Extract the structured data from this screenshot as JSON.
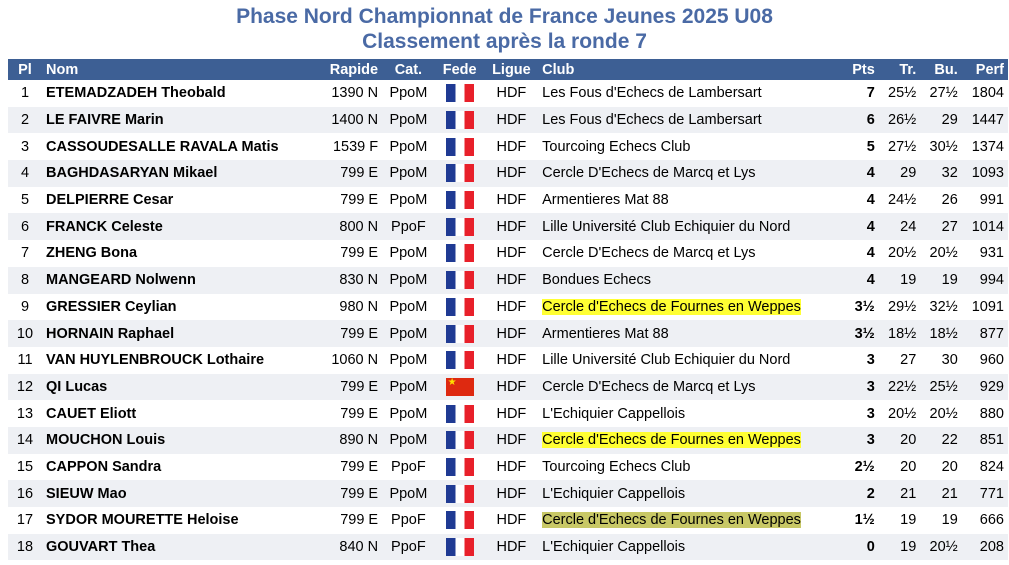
{
  "title": "Phase Nord Championnat de France Jeunes 2025 U08",
  "subtitle": "Classement après la ronde 7",
  "columns": {
    "pl": "Pl",
    "nom": "Nom",
    "rapide": "Rapide",
    "cat": "Cat.",
    "fede": "Fede",
    "ligue": "Ligue",
    "club": "Club",
    "pts": "Pts",
    "tr": "Tr.",
    "bu": "Bu.",
    "perf": "Perf"
  },
  "colors": {
    "title": "#4a6aa5",
    "header_bg": "#3d5f94",
    "highlight_yellow": "#ffff33",
    "highlight_olive": "#c8c866"
  },
  "rows": [
    {
      "pl": "1",
      "nom": "ETEMADZADEH Theobald",
      "rapide": "1390 N",
      "cat": "PpoM",
      "fede": "flag-france",
      "ligue": "HDF",
      "club": "Les Fous d'Echecs de Lambersart",
      "club_highlight": "",
      "pts": "7",
      "tr": "25½",
      "bu": "27½",
      "perf": "1804"
    },
    {
      "pl": "2",
      "nom": "LE FAIVRE Marin",
      "rapide": "1400 N",
      "cat": "PpoM",
      "fede": "flag-france",
      "ligue": "HDF",
      "club": "Les Fous d'Echecs de Lambersart",
      "club_highlight": "",
      "pts": "6",
      "tr": "26½",
      "bu": "29",
      "perf": "1447"
    },
    {
      "pl": "3",
      "nom": "CASSOUDESALLE RAVALA Matis",
      "rapide": "1539 F",
      "cat": "PpoM",
      "fede": "flag-france",
      "ligue": "HDF",
      "club": "Tourcoing Echecs Club",
      "club_highlight": "",
      "pts": "5",
      "tr": "27½",
      "bu": "30½",
      "perf": "1374"
    },
    {
      "pl": "4",
      "nom": "BAGHDASARYAN Mikael",
      "rapide": "799 E",
      "cat": "PpoM",
      "fede": "flag-france",
      "ligue": "HDF",
      "club": "Cercle D'Echecs de Marcq et Lys",
      "club_highlight": "",
      "pts": "4",
      "tr": "29",
      "bu": "32",
      "perf": "1093"
    },
    {
      "pl": "5",
      "nom": "DELPIERRE Cesar",
      "rapide": "799 E",
      "cat": "PpoM",
      "fede": "flag-france",
      "ligue": "HDF",
      "club": "Armentieres Mat 88",
      "club_highlight": "",
      "pts": "4",
      "tr": "24½",
      "bu": "26",
      "perf": "991"
    },
    {
      "pl": "6",
      "nom": "FRANCK Celeste",
      "rapide": "800 N",
      "cat": "PpoF",
      "fede": "flag-france",
      "ligue": "HDF",
      "club": "Lille Université Club Echiquier du Nord",
      "club_highlight": "",
      "pts": "4",
      "tr": "24",
      "bu": "27",
      "perf": "1014"
    },
    {
      "pl": "7",
      "nom": "ZHENG Bona",
      "rapide": "799 E",
      "cat": "PpoM",
      "fede": "flag-france",
      "ligue": "HDF",
      "club": "Cercle D'Echecs de Marcq et Lys",
      "club_highlight": "",
      "pts": "4",
      "tr": "20½",
      "bu": "20½",
      "perf": "931"
    },
    {
      "pl": "8",
      "nom": "MANGEARD Nolwenn",
      "rapide": "830 N",
      "cat": "PpoM",
      "fede": "flag-france",
      "ligue": "HDF",
      "club": "Bondues Echecs",
      "club_highlight": "",
      "pts": "4",
      "tr": "19",
      "bu": "19",
      "perf": "994"
    },
    {
      "pl": "9",
      "nom": "GRESSIER Ceylian",
      "rapide": "980 N",
      "cat": "PpoM",
      "fede": "flag-france",
      "ligue": "HDF",
      "club": "Cercle d'Echecs de Fournes en Weppes",
      "club_highlight": "yellow",
      "pts": "3½",
      "tr": "29½",
      "bu": "32½",
      "perf": "1091"
    },
    {
      "pl": "10",
      "nom": "HORNAIN Raphael",
      "rapide": "799 E",
      "cat": "PpoM",
      "fede": "flag-france",
      "ligue": "HDF",
      "club": "Armentieres Mat 88",
      "club_highlight": "",
      "pts": "3½",
      "tr": "18½",
      "bu": "18½",
      "perf": "877"
    },
    {
      "pl": "11",
      "nom": "VAN HUYLENBROUCK Lothaire",
      "rapide": "1060 N",
      "cat": "PpoM",
      "fede": "flag-france",
      "ligue": "HDF",
      "club": "Lille Université Club Echiquier du Nord",
      "club_highlight": "",
      "pts": "3",
      "tr": "27",
      "bu": "30",
      "perf": "960"
    },
    {
      "pl": "12",
      "nom": "QI Lucas",
      "rapide": "799 E",
      "cat": "PpoM",
      "fede": "flag-china",
      "ligue": "HDF",
      "club": "Cercle D'Echecs de Marcq et Lys",
      "club_highlight": "",
      "pts": "3",
      "tr": "22½",
      "bu": "25½",
      "perf": "929"
    },
    {
      "pl": "13",
      "nom": "CAUET Eliott",
      "rapide": "799 E",
      "cat": "PpoM",
      "fede": "flag-france",
      "ligue": "HDF",
      "club": "L'Echiquier Cappellois",
      "club_highlight": "",
      "pts": "3",
      "tr": "20½",
      "bu": "20½",
      "perf": "880"
    },
    {
      "pl": "14",
      "nom": "MOUCHON Louis",
      "rapide": "890 N",
      "cat": "PpoM",
      "fede": "flag-france",
      "ligue": "HDF",
      "club": "Cercle d'Echecs de Fournes en Weppes",
      "club_highlight": "yellow",
      "pts": "3",
      "tr": "20",
      "bu": "22",
      "perf": "851"
    },
    {
      "pl": "15",
      "nom": "CAPPON Sandra",
      "rapide": "799 E",
      "cat": "PpoF",
      "fede": "flag-france",
      "ligue": "HDF",
      "club": "Tourcoing Echecs Club",
      "club_highlight": "",
      "pts": "2½",
      "tr": "20",
      "bu": "20",
      "perf": "824"
    },
    {
      "pl": "16",
      "nom": "SIEUW Mao",
      "rapide": "799 E",
      "cat": "PpoM",
      "fede": "flag-france",
      "ligue": "HDF",
      "club": "L'Echiquier Cappellois",
      "club_highlight": "",
      "pts": "2",
      "tr": "21",
      "bu": "21",
      "perf": "771"
    },
    {
      "pl": "17",
      "nom": "SYDOR MOURETTE Heloise",
      "rapide": "799 E",
      "cat": "PpoF",
      "fede": "flag-france",
      "ligue": "HDF",
      "club": "Cercle d'Echecs de Fournes en Weppes",
      "club_highlight": "olive",
      "pts": "1½",
      "tr": "19",
      "bu": "19",
      "perf": "666"
    },
    {
      "pl": "18",
      "nom": "GOUVART Thea",
      "rapide": "840 N",
      "cat": "PpoF",
      "fede": "flag-france",
      "ligue": "HDF",
      "club": "L'Echiquier Cappellois",
      "club_highlight": "",
      "pts": "0",
      "tr": "19",
      "bu": "20½",
      "perf": "208"
    }
  ]
}
